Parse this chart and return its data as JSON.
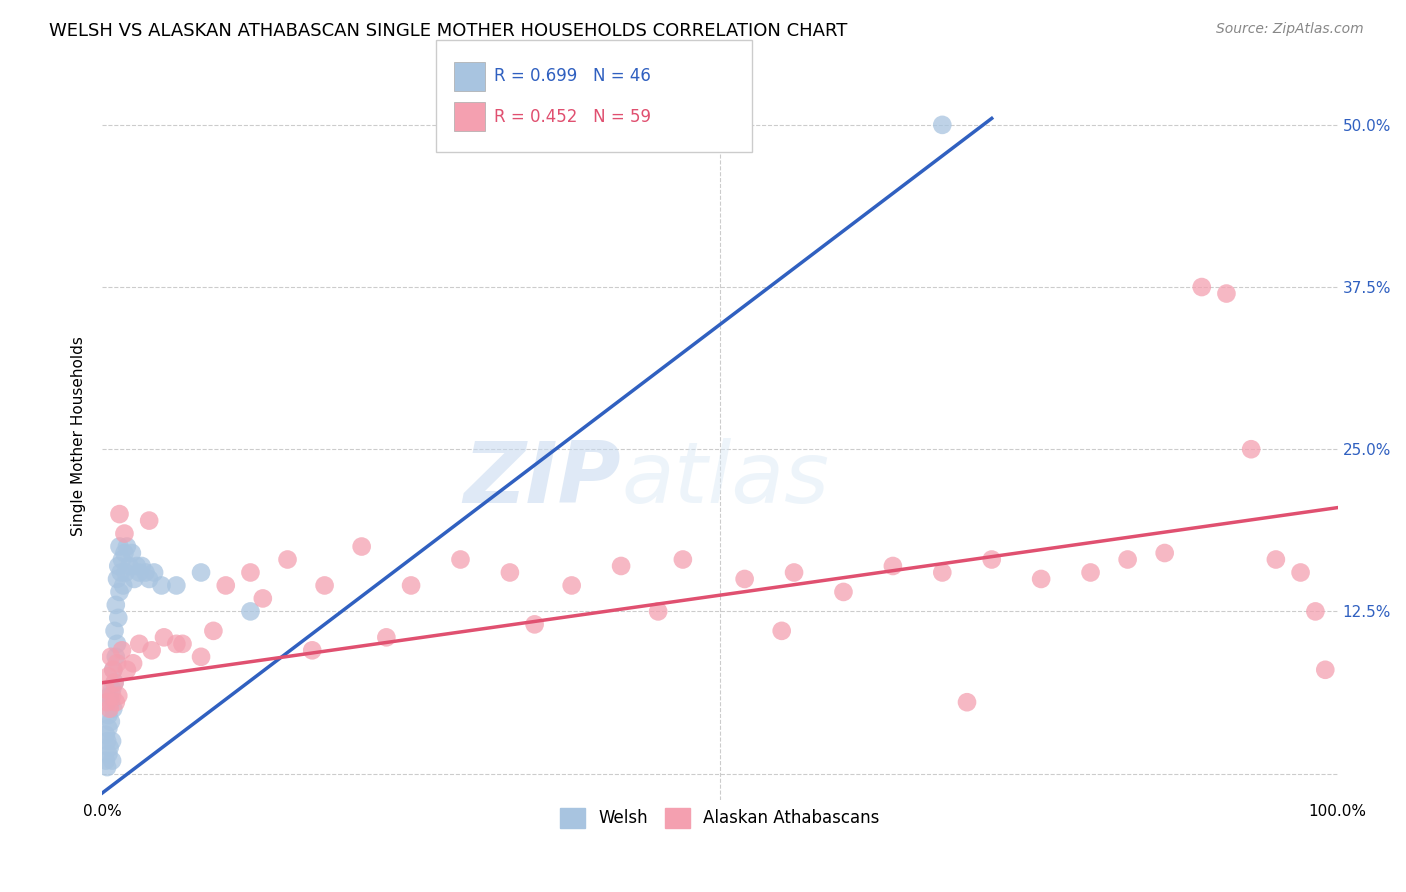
{
  "title": "WELSH VS ALASKAN ATHABASCAN SINGLE MOTHER HOUSEHOLDS CORRELATION CHART",
  "source": "Source: ZipAtlas.com",
  "ylabel": "Single Mother Households",
  "ytick_labels": [
    "",
    "12.5%",
    "25.0%",
    "37.5%",
    "50.0%"
  ],
  "ytick_values": [
    0.0,
    0.125,
    0.25,
    0.375,
    0.5
  ],
  "xlim": [
    0.0,
    1.0
  ],
  "ylim": [
    -0.02,
    0.54
  ],
  "welsh_R": "0.699",
  "welsh_N": "46",
  "athabascan_R": "0.452",
  "athabascan_N": "59",
  "welsh_color": "#a8c4e0",
  "athabascan_color": "#f4a0b0",
  "welsh_line_color": "#3060c0",
  "athabascan_line_color": "#e05070",
  "legend_label_welsh": "Welsh",
  "legend_label_athabascan": "Alaskan Athabascans",
  "background_color": "#ffffff",
  "grid_color": "#cccccc",
  "watermark_zip": "ZIP",
  "watermark_atlas": "atlas",
  "title_fontsize": 13,
  "source_fontsize": 10,
  "welsh_line_x0": 0.0,
  "welsh_line_y0": -0.015,
  "welsh_line_x1": 0.72,
  "welsh_line_y1": 0.505,
  "athabascan_line_x0": 0.0,
  "athabascan_line_y0": 0.07,
  "athabascan_line_x1": 1.0,
  "athabascan_line_y1": 0.205,
  "welsh_scatter_x": [
    0.003,
    0.003,
    0.004,
    0.004,
    0.005,
    0.005,
    0.005,
    0.006,
    0.006,
    0.007,
    0.007,
    0.008,
    0.008,
    0.008,
    0.009,
    0.009,
    0.01,
    0.01,
    0.011,
    0.011,
    0.012,
    0.012,
    0.013,
    0.013,
    0.014,
    0.014,
    0.015,
    0.016,
    0.017,
    0.018,
    0.019,
    0.02,
    0.022,
    0.024,
    0.026,
    0.028,
    0.03,
    0.032,
    0.035,
    0.038,
    0.042,
    0.048,
    0.06,
    0.08,
    0.12,
    0.68
  ],
  "welsh_scatter_y": [
    0.03,
    0.01,
    0.025,
    0.005,
    0.035,
    0.015,
    0.045,
    0.02,
    0.06,
    0.04,
    0.055,
    0.025,
    0.065,
    0.01,
    0.05,
    0.08,
    0.07,
    0.11,
    0.09,
    0.13,
    0.1,
    0.15,
    0.12,
    0.16,
    0.14,
    0.175,
    0.155,
    0.165,
    0.145,
    0.17,
    0.155,
    0.175,
    0.16,
    0.17,
    0.15,
    0.16,
    0.155,
    0.16,
    0.155,
    0.15,
    0.155,
    0.145,
    0.145,
    0.155,
    0.125,
    0.5
  ],
  "athabascan_scatter_x": [
    0.003,
    0.004,
    0.005,
    0.006,
    0.007,
    0.008,
    0.009,
    0.01,
    0.011,
    0.012,
    0.013,
    0.014,
    0.016,
    0.018,
    0.02,
    0.025,
    0.03,
    0.038,
    0.05,
    0.065,
    0.08,
    0.1,
    0.12,
    0.15,
    0.18,
    0.21,
    0.25,
    0.29,
    0.33,
    0.38,
    0.42,
    0.47,
    0.52,
    0.56,
    0.6,
    0.64,
    0.68,
    0.72,
    0.76,
    0.8,
    0.83,
    0.86,
    0.89,
    0.91,
    0.93,
    0.95,
    0.97,
    0.982,
    0.99,
    0.04,
    0.06,
    0.09,
    0.13,
    0.17,
    0.23,
    0.35,
    0.45,
    0.55,
    0.7
  ],
  "athabascan_scatter_y": [
    0.065,
    0.055,
    0.075,
    0.05,
    0.09,
    0.06,
    0.08,
    0.07,
    0.055,
    0.085,
    0.06,
    0.2,
    0.095,
    0.185,
    0.08,
    0.085,
    0.1,
    0.195,
    0.105,
    0.1,
    0.09,
    0.145,
    0.155,
    0.165,
    0.145,
    0.175,
    0.145,
    0.165,
    0.155,
    0.145,
    0.16,
    0.165,
    0.15,
    0.155,
    0.14,
    0.16,
    0.155,
    0.165,
    0.15,
    0.155,
    0.165,
    0.17,
    0.375,
    0.37,
    0.25,
    0.165,
    0.155,
    0.125,
    0.08,
    0.095,
    0.1,
    0.11,
    0.135,
    0.095,
    0.105,
    0.115,
    0.125,
    0.11,
    0.055
  ]
}
